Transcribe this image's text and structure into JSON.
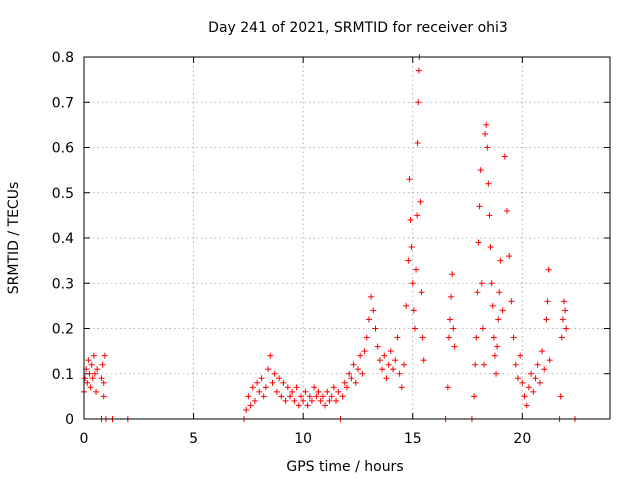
{
  "chart_data": {
    "type": "scatter",
    "title": "Day 241 of 2021, SRMTID for receiver ohi3",
    "xlabel": "GPS time / hours",
    "ylabel": "SRMTID / TECUs",
    "xlim": [
      0,
      24
    ],
    "ylim": [
      0,
      0.8
    ],
    "xticks": [
      0,
      5,
      10,
      15,
      20
    ],
    "yticks": [
      0,
      0.1,
      0.2,
      0.3,
      0.4,
      0.5,
      0.6,
      0.7,
      0.8
    ],
    "grid": true,
    "marker": "+",
    "series": [
      {
        "name": "SRMTID",
        "color": "#ff0000",
        "points": [
          [
            0.0,
            0.06
          ],
          [
            0.05,
            0.09
          ],
          [
            0.1,
            0.11
          ],
          [
            0.15,
            0.08
          ],
          [
            0.2,
            0.13
          ],
          [
            0.25,
            0.1
          ],
          [
            0.3,
            0.07
          ],
          [
            0.35,
            0.12
          ],
          [
            0.4,
            0.09
          ],
          [
            0.45,
            0.14
          ],
          [
            0.5,
            0.1
          ],
          [
            0.55,
            0.06
          ],
          [
            0.6,
            0.11
          ],
          [
            0.8,
            0.09
          ],
          [
            0.85,
            0.12
          ],
          [
            0.9,
            0.08
          ],
          [
            0.95,
            0.14
          ],
          [
            0.9,
            0.05
          ],
          [
            0.8,
            0.0
          ],
          [
            1.0,
            0.0
          ],
          [
            1.3,
            0.0
          ],
          [
            2.0,
            0.0
          ],
          [
            7.3,
            0.0
          ],
          [
            7.4,
            0.02
          ],
          [
            7.5,
            0.05
          ],
          [
            7.6,
            0.03
          ],
          [
            7.7,
            0.07
          ],
          [
            7.8,
            0.04
          ],
          [
            7.9,
            0.08
          ],
          [
            8.0,
            0.06
          ],
          [
            8.1,
            0.09
          ],
          [
            8.2,
            0.05
          ],
          [
            8.3,
            0.07
          ],
          [
            8.4,
            0.11
          ],
          [
            8.5,
            0.14
          ],
          [
            8.6,
            0.08
          ],
          [
            8.7,
            0.1
          ],
          [
            8.8,
            0.06
          ],
          [
            8.9,
            0.09
          ],
          [
            9.0,
            0.05
          ],
          [
            9.1,
            0.08
          ],
          [
            9.2,
            0.04
          ],
          [
            9.3,
            0.07
          ],
          [
            9.4,
            0.05
          ],
          [
            9.5,
            0.06
          ],
          [
            9.6,
            0.04
          ],
          [
            9.7,
            0.07
          ],
          [
            9.8,
            0.03
          ],
          [
            9.9,
            0.05
          ],
          [
            10.0,
            0.04
          ],
          [
            10.1,
            0.06
          ],
          [
            10.2,
            0.03
          ],
          [
            10.3,
            0.05
          ],
          [
            10.4,
            0.04
          ],
          [
            10.5,
            0.07
          ],
          [
            10.6,
            0.05
          ],
          [
            10.7,
            0.06
          ],
          [
            10.8,
            0.04
          ],
          [
            10.9,
            0.05
          ],
          [
            11.0,
            0.03
          ],
          [
            11.1,
            0.06
          ],
          [
            11.2,
            0.04
          ],
          [
            11.3,
            0.05
          ],
          [
            11.4,
            0.07
          ],
          [
            11.5,
            0.04
          ],
          [
            11.6,
            0.06
          ],
          [
            11.7,
            0.0
          ],
          [
            11.8,
            0.05
          ],
          [
            11.9,
            0.08
          ],
          [
            12.0,
            0.07
          ],
          [
            12.1,
            0.1
          ],
          [
            12.2,
            0.09
          ],
          [
            12.3,
            0.12
          ],
          [
            12.4,
            0.08
          ],
          [
            12.5,
            0.11
          ],
          [
            12.6,
            0.14
          ],
          [
            12.7,
            0.1
          ],
          [
            12.8,
            0.15
          ],
          [
            12.9,
            0.18
          ],
          [
            13.0,
            0.22
          ],
          [
            13.1,
            0.27
          ],
          [
            13.2,
            0.24
          ],
          [
            13.3,
            0.2
          ],
          [
            13.4,
            0.16
          ],
          [
            13.5,
            0.13
          ],
          [
            13.6,
            0.11
          ],
          [
            13.7,
            0.14
          ],
          [
            13.8,
            0.09
          ],
          [
            13.9,
            0.12
          ],
          [
            14.0,
            0.15
          ],
          [
            14.1,
            0.11
          ],
          [
            14.2,
            0.13
          ],
          [
            14.3,
            0.18
          ],
          [
            14.4,
            0.1
          ],
          [
            14.5,
            0.07
          ],
          [
            14.6,
            0.12
          ],
          [
            14.7,
            0.25
          ],
          [
            14.8,
            0.35
          ],
          [
            14.85,
            0.53
          ],
          [
            14.9,
            0.44
          ],
          [
            14.95,
            0.38
          ],
          [
            15.0,
            0.3
          ],
          [
            15.05,
            0.24
          ],
          [
            15.1,
            0.2
          ],
          [
            15.15,
            0.33
          ],
          [
            15.2,
            0.45
          ],
          [
            15.22,
            0.61
          ],
          [
            15.25,
            0.7
          ],
          [
            15.28,
            0.77
          ],
          [
            15.3,
            0.8
          ],
          [
            15.35,
            0.48
          ],
          [
            15.4,
            0.28
          ],
          [
            15.45,
            0.18
          ],
          [
            15.5,
            0.13
          ],
          [
            16.5,
            0.0
          ],
          [
            16.6,
            0.07
          ],
          [
            16.65,
            0.18
          ],
          [
            16.7,
            0.22
          ],
          [
            16.75,
            0.27
          ],
          [
            16.8,
            0.32
          ],
          [
            16.85,
            0.2
          ],
          [
            16.9,
            0.16
          ],
          [
            17.7,
            0.0
          ],
          [
            17.8,
            0.05
          ],
          [
            17.85,
            0.12
          ],
          [
            17.9,
            0.18
          ],
          [
            17.95,
            0.28
          ],
          [
            18.0,
            0.39
          ],
          [
            18.05,
            0.47
          ],
          [
            18.1,
            0.55
          ],
          [
            18.15,
            0.3
          ],
          [
            18.2,
            0.2
          ],
          [
            18.25,
            0.12
          ],
          [
            18.3,
            0.63
          ],
          [
            18.35,
            0.65
          ],
          [
            18.4,
            0.6
          ],
          [
            18.45,
            0.52
          ],
          [
            18.5,
            0.45
          ],
          [
            18.55,
            0.38
          ],
          [
            18.6,
            0.3
          ],
          [
            18.65,
            0.25
          ],
          [
            18.7,
            0.18
          ],
          [
            18.75,
            0.14
          ],
          [
            18.8,
            0.1
          ],
          [
            18.85,
            0.16
          ],
          [
            18.9,
            0.22
          ],
          [
            18.95,
            0.28
          ],
          [
            19.0,
            0.35
          ],
          [
            19.1,
            0.24
          ],
          [
            19.2,
            0.58
          ],
          [
            19.3,
            0.46
          ],
          [
            19.4,
            0.36
          ],
          [
            19.5,
            0.26
          ],
          [
            19.6,
            0.18
          ],
          [
            19.7,
            0.12
          ],
          [
            19.8,
            0.09
          ],
          [
            19.9,
            0.14
          ],
          [
            20.0,
            0.08
          ],
          [
            20.1,
            0.05
          ],
          [
            20.2,
            0.03
          ],
          [
            20.3,
            0.07
          ],
          [
            20.4,
            0.1
          ],
          [
            20.5,
            0.06
          ],
          [
            20.6,
            0.09
          ],
          [
            20.7,
            0.12
          ],
          [
            20.8,
            0.08
          ],
          [
            20.9,
            0.15
          ],
          [
            21.0,
            0.11
          ],
          [
            21.1,
            0.22
          ],
          [
            21.15,
            0.26
          ],
          [
            21.2,
            0.33
          ],
          [
            21.25,
            0.13
          ],
          [
            21.7,
            0.0
          ],
          [
            21.75,
            0.05
          ],
          [
            21.8,
            0.18
          ],
          [
            21.85,
            0.22
          ],
          [
            21.9,
            0.26
          ],
          [
            21.95,
            0.24
          ],
          [
            22.0,
            0.2
          ],
          [
            22.4,
            0.0
          ]
        ]
      }
    ]
  }
}
